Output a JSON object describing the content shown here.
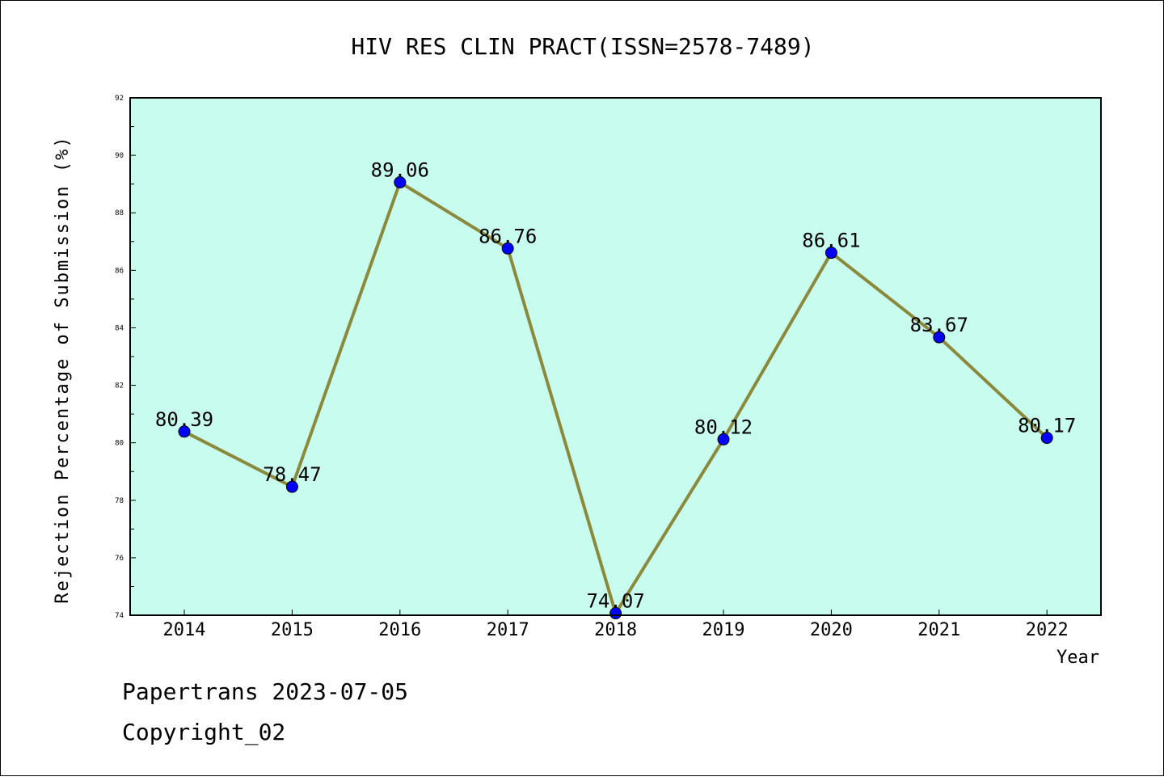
{
  "chart_data": {
    "type": "line",
    "title": "HIV RES CLIN PRACT(ISSN=2578-7489)",
    "xlabel": "Year",
    "ylabel": "Rejection Percentage of Submission (%)",
    "categories": [
      "2014",
      "2015",
      "2016",
      "2017",
      "2018",
      "2019",
      "2020",
      "2021",
      "2022"
    ],
    "values": [
      80.39,
      78.47,
      89.06,
      86.76,
      74.07,
      80.12,
      86.61,
      83.67,
      80.17
    ],
    "data_labels": [
      "80.39",
      "78.47",
      "89.06",
      "86.76",
      "74.07",
      "80.12",
      "86.61",
      "83.67",
      "80.17"
    ],
    "ylim": [
      74,
      92
    ],
    "yticks": [
      "74",
      "76",
      "78",
      "80",
      "82",
      "84",
      "86",
      "88",
      "90",
      "92"
    ],
    "grid": false,
    "colors": {
      "plot_background": "#c8fcee",
      "line": "#8b8a3c",
      "marker": "#0000ff"
    }
  },
  "footer": {
    "line1": "Papertrans 2023-07-05",
    "line2": "Copyright_02"
  }
}
